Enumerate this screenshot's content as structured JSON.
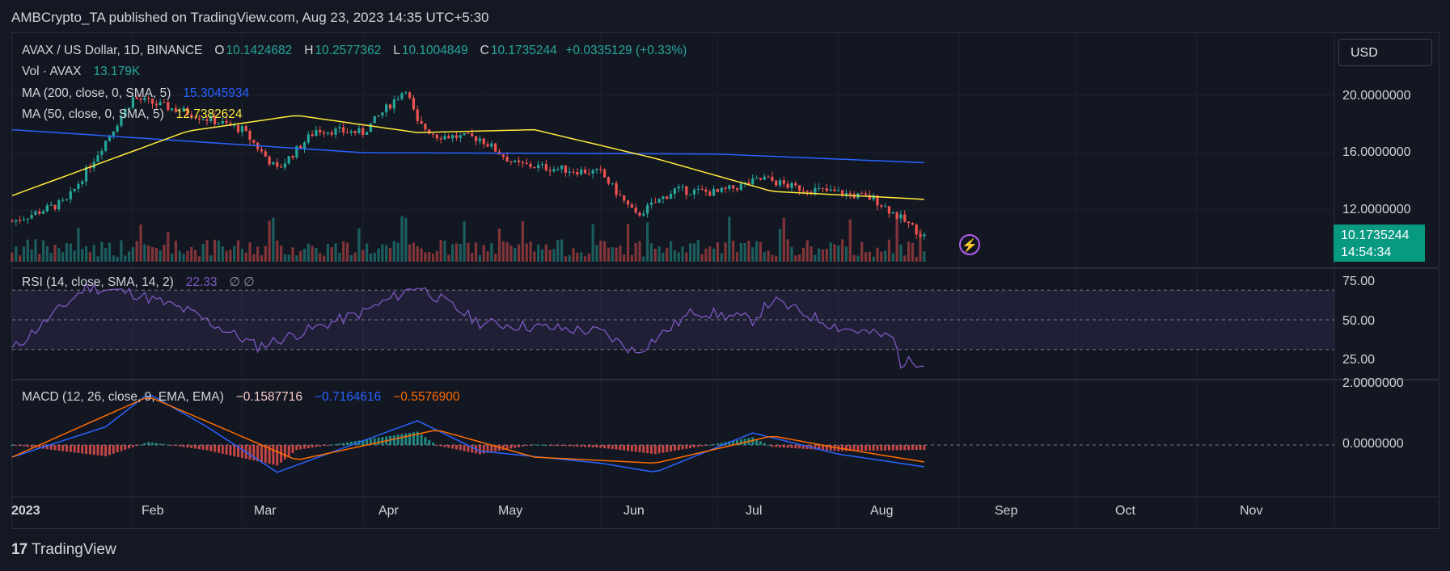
{
  "header": {
    "publisher": "AMBCrypto_TA published on TradingView.com, Aug 23, 2023 14:35 UTC+5:30"
  },
  "currency_button": "USD",
  "legend": {
    "symbol": "AVAX / US Dollar, 1D, BINANCE",
    "o_label": "O",
    "o_val": "10.1424682",
    "h_label": "H",
    "h_val": "10.2577362",
    "l_label": "L",
    "l_val": "10.1004849",
    "c_label": "C",
    "c_val": "10.1735244",
    "change": "+0.0335129 (+0.33%)",
    "vol_label": "Vol · AVAX",
    "vol_val": "13.179K",
    "ma200_label": "MA (200, close, 0, SMA, 5)",
    "ma200_val": "15.3045934",
    "ma50_label": "MA (50, close, 0, SMA, 5)",
    "ma50_val": "12.7382624",
    "rsi_label": "RSI (14, close, SMA, 14, 2)",
    "rsi_val": "22.33",
    "rsi_extra": "∅  ∅",
    "macd_label": "MACD (12, 26, close, 9, EMA, EMA)",
    "macd_hist": "−0.1587716",
    "macd_line": "−0.7164616",
    "macd_signal": "−0.5576900"
  },
  "price_tag": {
    "price": "10.1735244",
    "countdown": "14:54:34"
  },
  "axis": {
    "price_ticks": [
      "20.0000000",
      "16.0000000",
      "12.0000000"
    ],
    "rsi_ticks": [
      "75.00",
      "50.00",
      "25.00"
    ],
    "macd_ticks": [
      "2.0000000",
      "0.0000000"
    ],
    "months": [
      "2023",
      "Feb",
      "Mar",
      "Apr",
      "May",
      "Jun",
      "Jul",
      "Aug",
      "Sep",
      "Oct",
      "Nov"
    ]
  },
  "brand": {
    "logo_text": "TradingView",
    "logo_mark": "17"
  },
  "colors": {
    "up": "#26a69a",
    "down": "#ef5350",
    "ma200": "#2962ff",
    "ma50": "#ffeb3b",
    "rsi": "#7e57c2",
    "macd": "#2962ff",
    "signal": "#ff6d00",
    "accent": "#089981"
  },
  "chart_data": [
    {
      "type": "candlestick",
      "title": "AVAX / US Dollar, 1D, BINANCE",
      "x_range": [
        "2023-01-01",
        "2023-11-30"
      ],
      "ylim": [
        10,
        22
      ],
      "close_checkpoints": {
        "x": [
          "2023-01-01",
          "2023-01-15",
          "2023-02-01",
          "2023-02-15",
          "2023-03-01",
          "2023-03-10",
          "2023-03-20",
          "2023-04-01",
          "2023-04-12",
          "2023-04-15",
          "2023-04-20",
          "2023-05-01",
          "2023-05-10",
          "2023-05-20",
          "2023-06-01",
          "2023-06-10",
          "2023-06-20",
          "2023-07-01",
          "2023-07-13",
          "2023-07-20",
          "2023-08-01",
          "2023-08-10",
          "2023-08-17",
          "2023-08-23"
        ],
        "values": [
          11.2,
          12.6,
          19.8,
          18.8,
          17.6,
          14.8,
          17.6,
          17.4,
          20.5,
          18.0,
          17.2,
          17.0,
          15.2,
          14.9,
          14.6,
          11.6,
          13.4,
          13.2,
          14.2,
          13.6,
          13.2,
          12.8,
          11.4,
          10.17
        ]
      },
      "ma200": {
        "x": [
          "2023-01-01",
          "2023-04-01",
          "2023-07-01",
          "2023-08-23"
        ],
        "values": [
          17.6,
          16.0,
          15.9,
          15.3
        ]
      },
      "ma50": {
        "x": [
          "2023-01-01",
          "2023-02-15",
          "2023-03-15",
          "2023-04-15",
          "2023-05-15",
          "2023-06-15",
          "2023-07-15",
          "2023-08-23"
        ],
        "values": [
          13.0,
          17.5,
          18.6,
          17.4,
          17.6,
          15.6,
          13.3,
          12.74
        ]
      }
    },
    {
      "type": "line",
      "title": "RSI (14, close, SMA, 14, 2)",
      "ylim": [
        0,
        100
      ],
      "x": [
        "2023-01-01",
        "2023-01-20",
        "2023-02-01",
        "2023-02-15",
        "2023-03-05",
        "2023-04-01",
        "2023-04-15",
        "2023-05-01",
        "2023-06-01",
        "2023-06-10",
        "2023-06-25",
        "2023-07-10",
        "2023-07-15",
        "2023-08-01",
        "2023-08-15",
        "2023-08-17",
        "2023-08-23"
      ],
      "values": [
        30,
        72,
        68,
        56,
        32,
        55,
        73,
        48,
        42,
        28,
        56,
        50,
        63,
        45,
        38,
        21,
        22.33
      ],
      "band": [
        30,
        70
      ]
    },
    {
      "type": "line",
      "title": "MACD (12, 26, close, 9, EMA, EMA)",
      "series": [
        {
          "name": "MACD",
          "x": [
            "2023-01-01",
            "2023-01-25",
            "2023-02-05",
            "2023-02-20",
            "2023-03-10",
            "2023-04-15",
            "2023-05-01",
            "2023-06-01",
            "2023-06-15",
            "2023-07-10",
            "2023-08-01",
            "2023-08-23"
          ],
          "values": [
            -0.4,
            0.6,
            1.7,
            0.6,
            -0.9,
            0.8,
            -0.2,
            -0.6,
            -0.9,
            0.4,
            -0.3,
            -0.72
          ]
        },
        {
          "name": "Signal",
          "x": [
            "2023-01-01",
            "2023-02-05",
            "2023-02-25",
            "2023-03-15",
            "2023-04-20",
            "2023-05-15",
            "2023-06-15",
            "2023-07-15",
            "2023-08-01",
            "2023-08-23"
          ],
          "values": [
            -0.4,
            1.6,
            0.5,
            -0.5,
            0.5,
            -0.4,
            -0.6,
            0.3,
            -0.1,
            -0.56
          ]
        }
      ],
      "histogram_last": -0.16
    }
  ]
}
